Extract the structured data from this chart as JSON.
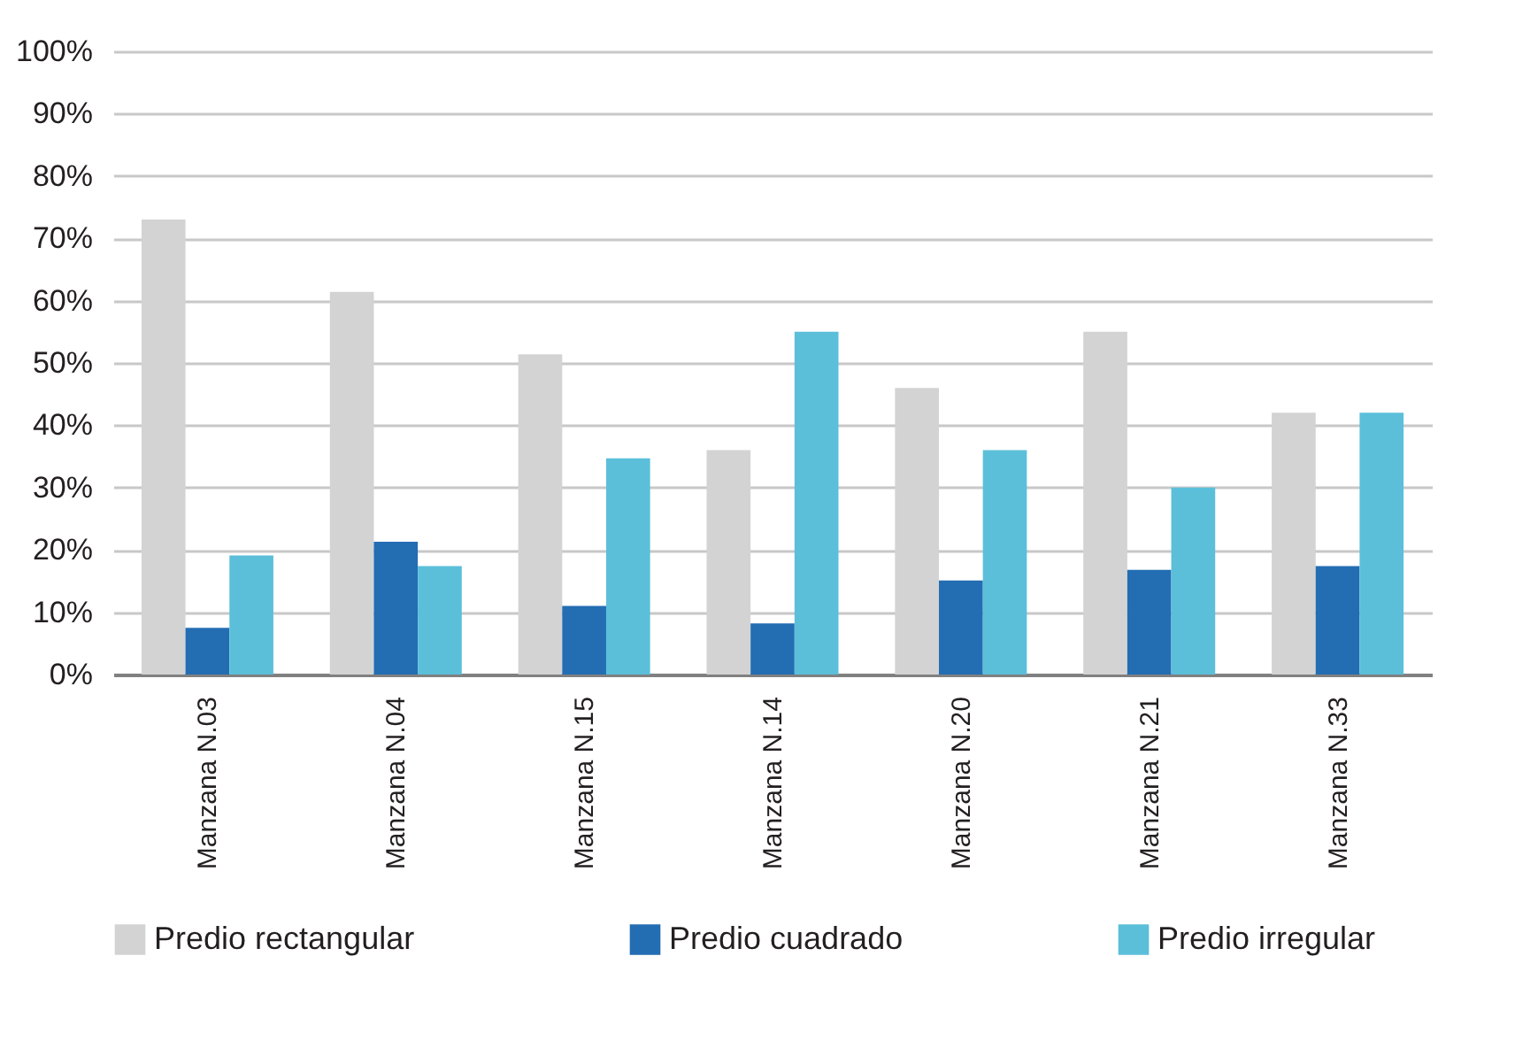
{
  "chart_data": {
    "type": "bar",
    "categories": [
      "Manzana N.03",
      "Manzana N.04",
      "Manzana N.15",
      "Manzana N.14",
      "Manzana N.20",
      "Manzana N.21",
      "Manzana N.33"
    ],
    "series": [
      {
        "name": "Predio rectangular",
        "color": "#d3d3d3",
        "values": [
          73,
          61.4,
          51.4,
          36,
          46,
          55,
          42
        ]
      },
      {
        "name": "Predio cuadrado",
        "color": "#236db3",
        "values": [
          7.5,
          21.3,
          11,
          8.2,
          15.1,
          16.8,
          17.4
        ]
      },
      {
        "name": "Predio irregular",
        "color": "#5bbfda",
        "values": [
          19.1,
          17.4,
          34.7,
          55,
          36,
          30,
          42
        ]
      }
    ],
    "ylim": [
      0,
      100
    ],
    "yticks": [
      {
        "value": 0,
        "label": "0%"
      },
      {
        "value": 10,
        "label": "10%"
      },
      {
        "value": 20,
        "label": "20%"
      },
      {
        "value": 30,
        "label": "30%"
      },
      {
        "value": 40,
        "label": "40%"
      },
      {
        "value": 50,
        "label": "50%"
      },
      {
        "value": 60,
        "label": "60%"
      },
      {
        "value": 70,
        "label": "70%"
      },
      {
        "value": 80,
        "label": "80%"
      },
      {
        "value": 90,
        "label": "90%"
      },
      {
        "value": 100,
        "label": "100%"
      }
    ],
    "grid": "y",
    "legend": "bottom"
  }
}
